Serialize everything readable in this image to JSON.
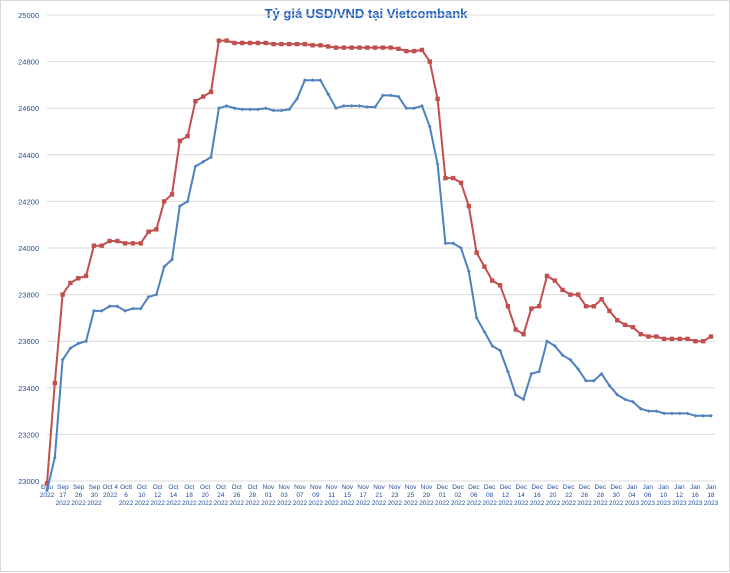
{
  "chart_data": {
    "type": "line",
    "title": "Tỷ giá USD/VND tại Vietcombank",
    "xlabel": "",
    "ylabel": "",
    "ylim": [
      23000,
      25000
    ],
    "yticks": [
      23000,
      23200,
      23400,
      23600,
      23800,
      24000,
      24200,
      24400,
      24600,
      24800,
      25000
    ],
    "grid": true,
    "legend": "none",
    "x_tick_labels": [
      [
        "Đầu",
        "2022"
      ],
      [
        "Sep",
        "17",
        "2022"
      ],
      [
        "Sep",
        "26",
        "2022"
      ],
      [
        "Sep",
        "30",
        "2022"
      ],
      [
        "Oct 4",
        "2022"
      ],
      [
        "Octt",
        "6",
        "2022"
      ],
      [
        "Oct",
        "10",
        "2022"
      ],
      [
        "Oct",
        "12",
        "2022"
      ],
      [
        "Oct",
        "14",
        "2022"
      ],
      [
        "Oct",
        "18",
        "2022"
      ],
      [
        "Oct",
        "20",
        "2022"
      ],
      [
        "Oct",
        "24",
        "2022"
      ],
      [
        "Oct",
        "26",
        "2022"
      ],
      [
        "Oct",
        "28",
        "2022"
      ],
      [
        "Nov",
        "01",
        "2022"
      ],
      [
        "Nov",
        "03",
        "2022"
      ],
      [
        "Nov",
        "07",
        "2022"
      ],
      [
        "Nov",
        "09",
        "2022"
      ],
      [
        "Nov",
        "11",
        "2022"
      ],
      [
        "Nov",
        "15",
        "2022"
      ],
      [
        "Nov",
        "17",
        "2022"
      ],
      [
        "Nov",
        "21",
        "2022"
      ],
      [
        "Nov",
        "23",
        "2022"
      ],
      [
        "Nov",
        "25",
        "2022"
      ],
      [
        "Nov",
        "29",
        "2022"
      ],
      [
        "Dec",
        "01",
        "2022"
      ],
      [
        "Dec",
        "02",
        "2022"
      ],
      [
        "Dec",
        "06",
        "2022"
      ],
      [
        "Dec",
        "08",
        "2022"
      ],
      [
        "Dec",
        "12",
        "2022"
      ],
      [
        "Dec",
        "14",
        "2022"
      ],
      [
        "Dec",
        "16",
        "2022"
      ],
      [
        "Dec",
        "20",
        "2022"
      ],
      [
        "Dec",
        "22",
        "2022"
      ],
      [
        "Dec",
        "26",
        "2022"
      ],
      [
        "Dec",
        "28",
        "2022"
      ],
      [
        "Dec",
        "30",
        "2022"
      ],
      [
        "Jan",
        "04",
        "2023"
      ],
      [
        "Jan",
        "06",
        "2023"
      ],
      [
        "Jan",
        "10",
        "2023"
      ],
      [
        "Jan",
        "12",
        "2023"
      ],
      [
        "Jan",
        "16",
        "2023"
      ],
      [
        "Jan",
        "18",
        "2023"
      ]
    ],
    "series": [
      {
        "color": "#c0504d",
        "marker": "square",
        "values": [
          22990,
          23420,
          23800,
          23850,
          23870,
          23880,
          24010,
          24010,
          24030,
          24030,
          24020,
          24020,
          24020,
          24070,
          24080,
          24200,
          24230,
          24460,
          24480,
          24630,
          24650,
          24670,
          24890,
          24890,
          24880,
          24880,
          24880,
          24880,
          24880,
          24875,
          24875,
          24875,
          24875,
          24875,
          24870,
          24870,
          24865,
          24860,
          24860,
          24860,
          24860,
          24860,
          24860,
          24860,
          24860,
          24855,
          24845,
          24845,
          24850,
          24800,
          24640,
          24300,
          24300,
          24280,
          24180,
          23980,
          23920,
          23860,
          23840,
          23750,
          23650,
          23630,
          23740,
          23750,
          23880,
          23860,
          23820,
          23800,
          23800,
          23750,
          23750,
          23780,
          23730,
          23690,
          23670,
          23660,
          23630,
          23620,
          23620,
          23610,
          23610,
          23610,
          23610,
          23600,
          23600,
          23620
        ]
      },
      {
        "color": "#4f81bd",
        "marker": "diamond",
        "values": [
          22960,
          23100,
          23520,
          23570,
          23590,
          23600,
          23730,
          23730,
          23750,
          23750,
          23730,
          23740,
          23740,
          23790,
          23800,
          23920,
          23950,
          24180,
          24200,
          24350,
          24370,
          24390,
          24600,
          24610,
          24600,
          24595,
          24595,
          24595,
          24600,
          24590,
          24590,
          24595,
          24640,
          24720,
          24720,
          24720,
          24660,
          24600,
          24610,
          24610,
          24610,
          24605,
          24605,
          24655,
          24655,
          24650,
          24600,
          24600,
          24610,
          24520,
          24360,
          24020,
          24020,
          24000,
          23900,
          23700,
          23640,
          23580,
          23560,
          23470,
          23370,
          23350,
          23460,
          23470,
          23600,
          23580,
          23540,
          23520,
          23480,
          23430,
          23430,
          23460,
          23410,
          23370,
          23350,
          23340,
          23310,
          23300,
          23300,
          23290,
          23290,
          23290,
          23290,
          23280,
          23280,
          23280
        ]
      }
    ]
  }
}
